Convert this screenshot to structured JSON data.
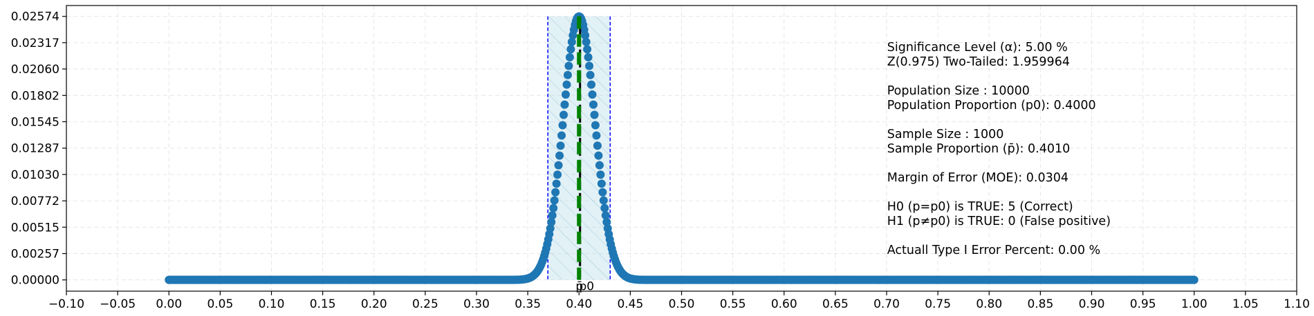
{
  "chart_data": {
    "type": "scatter",
    "title": "",
    "xlabel": "",
    "ylabel": "",
    "xlim": [
      -0.1,
      1.1
    ],
    "ylim": [
      -0.0011,
      0.0268
    ],
    "x_ticks": [
      "−0.10",
      "−0.05",
      "0.00",
      "0.05",
      "0.10",
      "0.15",
      "0.20",
      "0.25",
      "0.30",
      "0.35",
      "0.40",
      "0.45",
      "0.50",
      "0.55",
      "0.60",
      "0.65",
      "0.70",
      "0.75",
      "0.80",
      "0.85",
      "0.90",
      "0.95",
      "1.00",
      "1.05",
      "1.10"
    ],
    "x_tick_values": [
      -0.1,
      -0.05,
      0.0,
      0.05,
      0.1,
      0.15,
      0.2,
      0.25,
      0.3,
      0.35,
      0.4,
      0.45,
      0.5,
      0.55,
      0.6,
      0.65,
      0.7,
      0.75,
      0.8,
      0.85,
      0.9,
      0.95,
      1.0,
      1.05,
      1.1
    ],
    "y_ticks": [
      "0.00000",
      "0.00257",
      "0.00515",
      "0.00772",
      "0.01030",
      "0.01287",
      "0.01545",
      "0.01802",
      "0.02060",
      "0.02317",
      "0.02574"
    ],
    "y_tick_values": [
      0.0,
      0.00257,
      0.00515,
      0.00772,
      0.0103,
      0.01287,
      0.01545,
      0.01802,
      0.0206,
      0.02317,
      0.02574
    ],
    "grid": true,
    "distribution": {
      "x_start": 0.0,
      "x_end": 1.0,
      "x_step": 0.001,
      "center": 0.4,
      "std": 0.0155,
      "peak": 0.02574
    },
    "acceptance_region": [
      0.3696,
      0.4304
    ],
    "p0_line": 0.4,
    "p_hat_line": 0.401,
    "markers": {
      "p_hat": "p̄",
      "p0": "p0"
    },
    "colors": {
      "points": "#1f77b4",
      "region_fill": "#add8e6",
      "region_edge": "#0000ff",
      "p0_line": "#008000",
      "p_hat_line": "#000000"
    },
    "annotations": [
      "Significance Level (α): 5.00 %",
      "Z(0.975) Two-Tailed: 1.959964",
      "",
      "Population Size : 10000",
      "Population Proportion (p0): 0.4000",
      "",
      "Sample Size : 1000",
      "Sample Proportion (p̄): 0.4010",
      "",
      "Margin of Error (MOE): 0.0304",
      "",
      "H0 (p=p0) is TRUE: 5 (Correct)",
      "H1 (p≠p0) is TRUE: 0 (False positive)",
      "",
      "Actuall Type I Error Percent: 0.00 %"
    ]
  }
}
